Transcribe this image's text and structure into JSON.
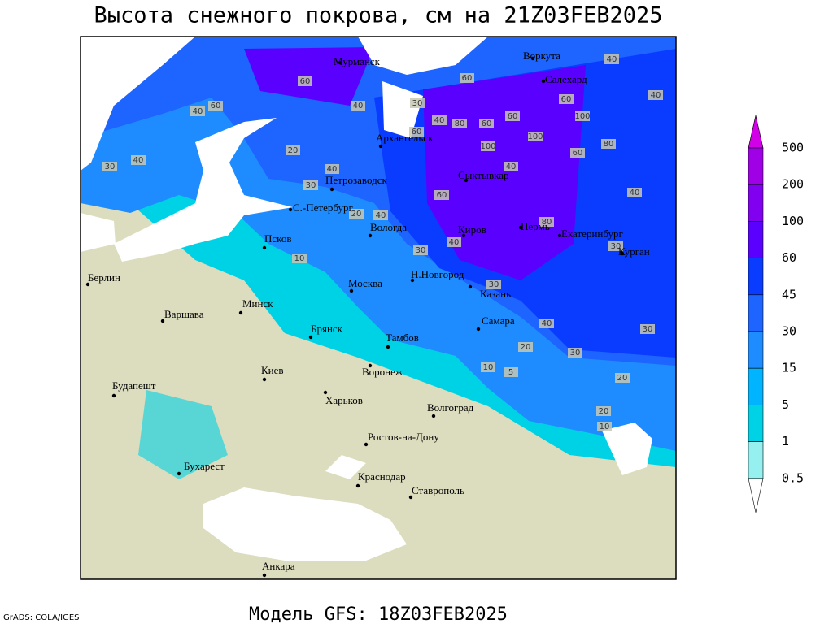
{
  "title": "Высота снежного покрова, см на 21Z03FEB2025",
  "footer": {
    "model": "Модель GFS: 18Z03FEB2025",
    "credit": "GrADS: COLA/IGES"
  },
  "colorbar": {
    "levels": [
      500,
      200,
      100,
      60,
      45,
      30,
      15,
      5,
      1,
      0.5
    ],
    "colors": [
      "#d200e6",
      "#a000e6",
      "#8200f0",
      "#5a00ff",
      "#0a3cff",
      "#1e64ff",
      "#1e8cff",
      "#00b4ff",
      "#00d2e6",
      "#96f0f0",
      "#ffffff"
    ]
  },
  "cities": [
    "Мурманск",
    "Воркута",
    "Салехард",
    "Архангельск",
    "Петрозаводск",
    "Сыктывкар",
    "С.-Петербург",
    "Вологда",
    "Псков",
    "Киров",
    "Пермь",
    "Екатеринбург",
    "Курган",
    "Берлин",
    "Н.Новгород",
    "Казань",
    "Москва",
    "Минск",
    "Варшава",
    "Брянск",
    "Тамбов",
    "Самара",
    "Киев",
    "Воронеж",
    "Будапешт",
    "Харьков",
    "Волгоград",
    "Ростов-на-Дону",
    "Бухарест",
    "Краснодар",
    "Ставрополь",
    "Анкара"
  ],
  "contour_labels": [
    60,
    60,
    40,
    40,
    40,
    30,
    20,
    40,
    30,
    20,
    40,
    30,
    40,
    10,
    80,
    100,
    100,
    100,
    80,
    60,
    40,
    40,
    60,
    80,
    30,
    30,
    40,
    30,
    20,
    30,
    10,
    5,
    20,
    20,
    10,
    40,
    60,
    40,
    60,
    40,
    60,
    30,
    60,
    60
  ]
}
